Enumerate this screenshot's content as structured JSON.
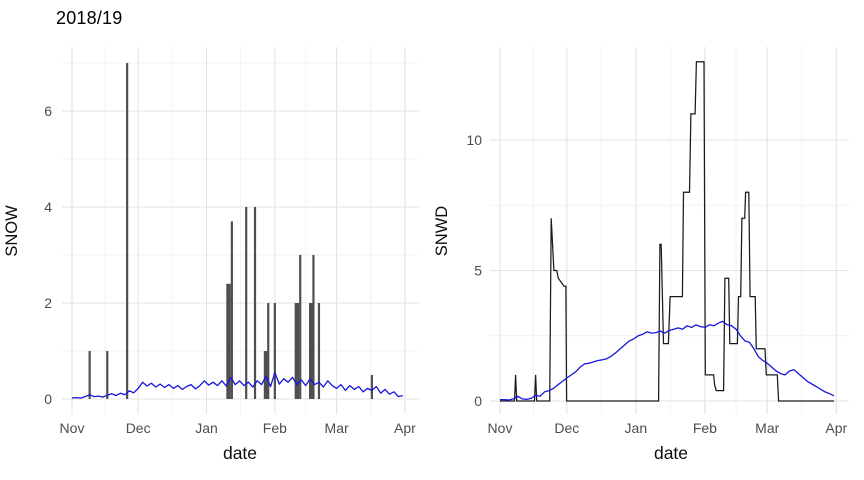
{
  "title": "2018/19",
  "colors": {
    "background": "#ffffff",
    "bar_fill": "#4f4f4f",
    "black_line": "#1a1a1a",
    "blue_line": "#1616dd",
    "grid_major": "#e3e3e3",
    "grid_minor": "#efefef",
    "tick_label": "#4d4d4d",
    "axis_title": "#0d0d0d"
  },
  "chart_data": [
    {
      "type": "bar",
      "ylabel": "SNOW",
      "xlabel": "date",
      "x_ticks": {
        "labels": [
          "Nov",
          "Dec",
          "Jan",
          "Feb",
          "Mar",
          "Apr"
        ],
        "days": [
          0,
          30,
          61,
          92,
          120,
          151
        ]
      },
      "x_minor_days": [
        15,
        45.5,
        76.5,
        106,
        135.5
      ],
      "y_ticks": {
        "labels": [
          "0",
          "2",
          "4",
          "6"
        ],
        "values": [
          0,
          2,
          4,
          6
        ]
      },
      "y_minor": [
        1,
        3,
        5,
        7
      ],
      "ylim": [
        0,
        7.35
      ],
      "xlim_days": [
        0,
        151
      ],
      "bars": [
        {
          "day": 8,
          "value": 1
        },
        {
          "day": 16,
          "value": 1
        },
        {
          "day": 25,
          "value": 7
        },
        {
          "day": 71,
          "value": 2.4,
          "w": 4.5
        },
        {
          "day": 72.5,
          "value": 3.7
        },
        {
          "day": 79,
          "value": 4
        },
        {
          "day": 83,
          "value": 4
        },
        {
          "day": 88,
          "value": 1,
          "w": 4.5
        },
        {
          "day": 89,
          "value": 2
        },
        {
          "day": 92,
          "value": 2
        },
        {
          "day": 102,
          "value": 2,
          "w": 4.5
        },
        {
          "day": 103.5,
          "value": 3
        },
        {
          "day": 108.5,
          "value": 2,
          "w": 4.5
        },
        {
          "day": 109.5,
          "value": 3
        },
        {
          "day": 112,
          "value": 2
        },
        {
          "day": 136,
          "value": 0.5
        }
      ],
      "blue_line": {
        "start_day": 0,
        "step_days": 2,
        "values": [
          0.02,
          0.03,
          0.02,
          0.05,
          0.09,
          0.05,
          0.06,
          0.04,
          0.08,
          0.11,
          0.07,
          0.12,
          0.09,
          0.17,
          0.13,
          0.22,
          0.35,
          0.27,
          0.33,
          0.25,
          0.31,
          0.24,
          0.3,
          0.22,
          0.28,
          0.2,
          0.26,
          0.3,
          0.21,
          0.28,
          0.38,
          0.29,
          0.35,
          0.28,
          0.38,
          0.27,
          0.45,
          0.3,
          0.38,
          0.28,
          0.35,
          0.25,
          0.38,
          0.3,
          0.48,
          0.26,
          0.55,
          0.31,
          0.42,
          0.35,
          0.45,
          0.3,
          0.4,
          0.28,
          0.42,
          0.3,
          0.35,
          0.25,
          0.38,
          0.28,
          0.22,
          0.3,
          0.18,
          0.28,
          0.2,
          0.26,
          0.15,
          0.22,
          0.18,
          0.26,
          0.12,
          0.2,
          0.1,
          0.15,
          0.05,
          0.07
        ]
      }
    },
    {
      "type": "line",
      "ylabel": "SNWD",
      "xlabel": "date",
      "x_ticks": {
        "labels": [
          "Nov",
          "Dec",
          "Jan",
          "Feb",
          "Mar",
          "Apr"
        ],
        "days": [
          0,
          30,
          61,
          92,
          120,
          151
        ]
      },
      "x_minor_days": [
        15,
        45.5,
        76.5,
        106,
        135.5
      ],
      "y_ticks": {
        "labels": [
          "0",
          "5",
          "10"
        ],
        "values": [
          0,
          5,
          10
        ]
      },
      "y_minor": [
        2.5,
        7.5
      ],
      "ylim": [
        0,
        13.55
      ],
      "xlim_days": [
        0,
        151
      ],
      "black_line": [
        [
          0,
          0
        ],
        [
          6.5,
          0
        ],
        [
          7,
          1
        ],
        [
          7.5,
          0
        ],
        [
          15.5,
          0
        ],
        [
          16,
          1
        ],
        [
          16.5,
          0
        ],
        [
          22.3,
          0
        ],
        [
          23,
          7
        ],
        [
          24.2,
          5
        ],
        [
          25.5,
          5
        ],
        [
          26.2,
          4.7
        ],
        [
          28.8,
          4.4
        ],
        [
          29.6,
          4.4
        ],
        [
          29.9,
          0
        ],
        [
          71.2,
          0
        ],
        [
          71.8,
          6
        ],
        [
          72.4,
          6
        ],
        [
          73.4,
          2.2
        ],
        [
          75.6,
          2.2
        ],
        [
          76.4,
          4
        ],
        [
          81.9,
          4
        ],
        [
          82.4,
          8
        ],
        [
          85.1,
          8
        ],
        [
          85.7,
          11
        ],
        [
          87.6,
          11
        ],
        [
          88.2,
          13
        ],
        [
          91.6,
          13
        ],
        [
          92.2,
          1
        ],
        [
          95.9,
          1
        ],
        [
          96.4,
          0.6
        ],
        [
          97.1,
          0.4
        ],
        [
          100.4,
          0.4
        ],
        [
          101,
          4.7
        ],
        [
          102.7,
          4.7
        ],
        [
          103.2,
          2.2
        ],
        [
          106.6,
          2.2
        ],
        [
          107.1,
          4
        ],
        [
          108.1,
          4
        ],
        [
          108.6,
          7
        ],
        [
          109.9,
          7
        ],
        [
          110.3,
          8
        ],
        [
          111.7,
          8
        ],
        [
          112.3,
          4
        ],
        [
          114.6,
          4
        ],
        [
          115.1,
          2
        ],
        [
          119,
          2
        ],
        [
          119.6,
          1
        ],
        [
          124.5,
          1
        ],
        [
          125.1,
          0
        ],
        [
          150,
          0
        ]
      ],
      "blue_line": {
        "start_day": 0,
        "step_days": 2,
        "values": [
          0.05,
          0.05,
          0.04,
          0.08,
          0.18,
          0.08,
          0.06,
          0.1,
          0.22,
          0.18,
          0.35,
          0.4,
          0.48,
          0.62,
          0.75,
          0.88,
          1.0,
          1.12,
          1.3,
          1.42,
          1.45,
          1.5,
          1.55,
          1.58,
          1.62,
          1.72,
          1.85,
          2.0,
          2.15,
          2.3,
          2.38,
          2.5,
          2.55,
          2.65,
          2.6,
          2.62,
          2.68,
          2.6,
          2.7,
          2.75,
          2.8,
          2.75,
          2.88,
          2.82,
          2.92,
          2.85,
          2.82,
          2.92,
          2.88,
          2.98,
          3.05,
          2.92,
          2.88,
          2.75,
          2.5,
          2.3,
          2.25,
          2.0,
          1.7,
          1.55,
          1.45,
          1.3,
          1.15,
          1.05,
          1.0,
          1.15,
          1.2,
          1.05,
          0.9,
          0.75,
          0.65,
          0.55,
          0.45,
          0.35,
          0.28,
          0.2
        ]
      }
    }
  ]
}
